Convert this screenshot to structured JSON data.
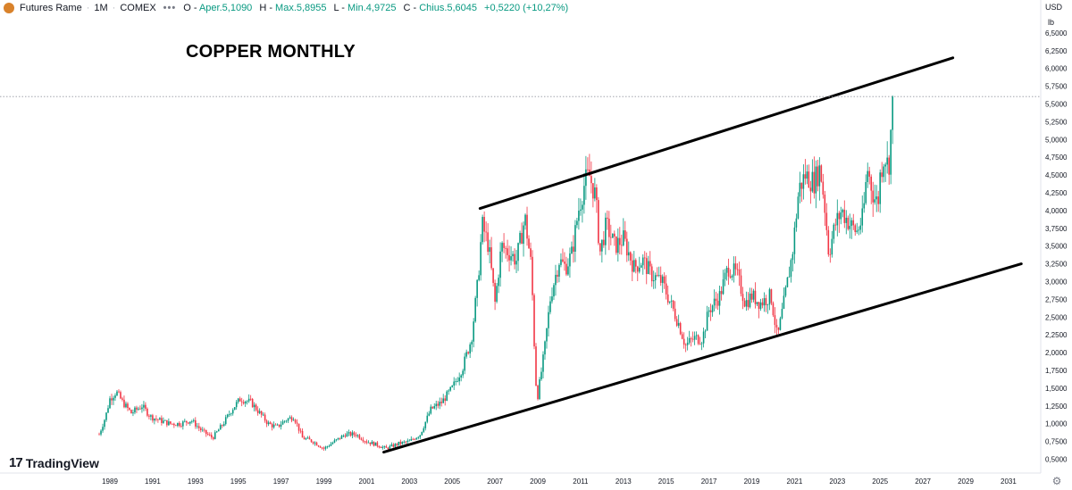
{
  "header": {
    "instrument": "Futures Rame",
    "interval": "1M",
    "exchange": "COMEX",
    "more": "•••",
    "ohlc": [
      {
        "label": "O",
        "value": "Aper.5,1090"
      },
      {
        "label": "H",
        "value": "Max.5,8955"
      },
      {
        "label": "L",
        "value": "Min.4,9725"
      },
      {
        "label": "C",
        "value": "Chius.5,6045"
      },
      {
        "label": "",
        "value": "+0,5220 (+10,27%)"
      }
    ]
  },
  "axis": {
    "currency": "USD",
    "unit": "lb"
  },
  "logo": {
    "mark": "17",
    "text": "TradingView"
  },
  "icons": {
    "settings": "gear-icon",
    "symbol": "copper-icon"
  },
  "colors": {
    "up": "#089981",
    "down": "#f23645",
    "trendline": "#000000",
    "price_label_bg": "#131722"
  },
  "chart_data": {
    "type": "candlestick",
    "title": "COPPER MONTHLY",
    "xlabel": "",
    "ylabel": "",
    "current_price": 5.6045,
    "current_price_label": "5,6045",
    "ylim": [
      0.4,
      6.9
    ],
    "xlim": [
      1988.0,
      2032.0
    ],
    "y_ticks": [
      0.5,
      0.75,
      1.0,
      1.25,
      1.5,
      1.75,
      2.0,
      2.25,
      2.5,
      2.75,
      3.0,
      3.25,
      3.5,
      3.75,
      4.0,
      4.25,
      4.5,
      4.75,
      5.0,
      5.25,
      5.5,
      5.75,
      6.0,
      6.25,
      6.5
    ],
    "y_tick_labels": [
      "0,5000",
      "0,7500",
      "1,0000",
      "1,2500",
      "1,5000",
      "1,7500",
      "2,0000",
      "2,2500",
      "2,5000",
      "2,7500",
      "3,0000",
      "3,2500",
      "3,5000",
      "3,7500",
      "4,0000",
      "4,2500",
      "4,5000",
      "4,7500",
      "5,0000",
      "5,2500",
      "5,5000",
      "5,7500",
      "6,0000",
      "6,2500",
      "6,5000"
    ],
    "x_ticks": [
      1989,
      1991,
      1993,
      1995,
      1997,
      1999,
      2001,
      2003,
      2005,
      2007,
      2009,
      2011,
      2013,
      2015,
      2017,
      2019,
      2021,
      2023,
      2025,
      2027,
      2029,
      2031
    ],
    "x_tick_labels": [
      "1989",
      "1991",
      "1993",
      "1995",
      "1997",
      "1999",
      "2001",
      "2003",
      "2005",
      "2007",
      "2009",
      "2011",
      "2013",
      "2015",
      "2017",
      "2019",
      "2021",
      "2023",
      "2025",
      "2027",
      "2029",
      "2031"
    ],
    "series_points": [
      [
        1988.5,
        0.85
      ],
      [
        1988.8,
        1.1
      ],
      [
        1989.0,
        1.35
      ],
      [
        1989.3,
        1.45
      ],
      [
        1989.6,
        1.3
      ],
      [
        1990.0,
        1.15
      ],
      [
        1990.5,
        1.25
      ],
      [
        1990.9,
        1.1
      ],
      [
        1991.3,
        1.05
      ],
      [
        1991.8,
        1.0
      ],
      [
        1992.3,
        1.0
      ],
      [
        1992.8,
        1.05
      ],
      [
        1993.3,
        0.9
      ],
      [
        1993.8,
        0.8
      ],
      [
        1994.3,
        1.0
      ],
      [
        1994.7,
        1.2
      ],
      [
        1995.1,
        1.35
      ],
      [
        1995.6,
        1.3
      ],
      [
        1996.0,
        1.15
      ],
      [
        1996.4,
        1.0
      ],
      [
        1996.8,
        0.95
      ],
      [
        1997.2,
        1.05
      ],
      [
        1997.6,
        1.1
      ],
      [
        1998.0,
        0.8
      ],
      [
        1998.5,
        0.75
      ],
      [
        1999.0,
        0.65
      ],
      [
        1999.5,
        0.75
      ],
      [
        2000.0,
        0.85
      ],
      [
        2000.5,
        0.85
      ],
      [
        2001.0,
        0.75
      ],
      [
        2001.5,
        0.7
      ],
      [
        2001.9,
        0.65
      ],
      [
        2002.5,
        0.72
      ],
      [
        2003.0,
        0.75
      ],
      [
        2003.5,
        0.85
      ],
      [
        2004.0,
        1.2
      ],
      [
        2004.5,
        1.3
      ],
      [
        2005.0,
        1.5
      ],
      [
        2005.5,
        1.8
      ],
      [
        2005.9,
        2.2
      ],
      [
        2006.2,
        3.0
      ],
      [
        2006.4,
        3.8
      ],
      [
        2006.7,
        3.5
      ],
      [
        2007.0,
        2.7
      ],
      [
        2007.3,
        3.5
      ],
      [
        2007.7,
        3.4
      ],
      [
        2008.0,
        3.3
      ],
      [
        2008.4,
        3.9
      ],
      [
        2008.7,
        3.2
      ],
      [
        2008.9,
        1.6
      ],
      [
        2009.0,
        1.4
      ],
      [
        2009.3,
        2.0
      ],
      [
        2009.6,
        2.8
      ],
      [
        2010.0,
        3.3
      ],
      [
        2010.3,
        3.2
      ],
      [
        2010.6,
        3.4
      ],
      [
        2010.9,
        4.0
      ],
      [
        2011.2,
        4.4
      ],
      [
        2011.4,
        4.5
      ],
      [
        2011.7,
        4.2
      ],
      [
        2011.9,
        3.4
      ],
      [
        2012.2,
        3.8
      ],
      [
        2012.6,
        3.5
      ],
      [
        2013.0,
        3.6
      ],
      [
        2013.5,
        3.2
      ],
      [
        2013.9,
        3.3
      ],
      [
        2014.3,
        3.1
      ],
      [
        2014.8,
        3.0
      ],
      [
        2015.2,
        2.7
      ],
      [
        2015.6,
        2.4
      ],
      [
        2015.9,
        2.1
      ],
      [
        2016.3,
        2.2
      ],
      [
        2016.7,
        2.2
      ],
      [
        2017.0,
        2.6
      ],
      [
        2017.5,
        2.8
      ],
      [
        2017.9,
        3.2
      ],
      [
        2018.3,
        3.1
      ],
      [
        2018.7,
        2.7
      ],
      [
        2019.0,
        2.8
      ],
      [
        2019.4,
        2.7
      ],
      [
        2019.9,
        2.8
      ],
      [
        2020.2,
        2.2
      ],
      [
        2020.5,
        2.7
      ],
      [
        2020.9,
        3.4
      ],
      [
        2021.2,
        4.3
      ],
      [
        2021.5,
        4.5
      ],
      [
        2021.9,
        4.4
      ],
      [
        2022.2,
        4.6
      ],
      [
        2022.4,
        4.1
      ],
      [
        2022.6,
        3.4
      ],
      [
        2022.9,
        3.8
      ],
      [
        2023.2,
        4.0
      ],
      [
        2023.6,
        3.8
      ],
      [
        2023.9,
        3.7
      ],
      [
        2024.2,
        3.9
      ],
      [
        2024.4,
        4.6
      ],
      [
        2024.7,
        4.2
      ],
      [
        2024.9,
        4.1
      ],
      [
        2025.0,
        4.5
      ],
      [
        2025.2,
        4.8
      ],
      [
        2025.4,
        4.6
      ],
      [
        2025.5,
        5.1
      ],
      [
        2025.6,
        5.6045
      ]
    ],
    "trendlines": [
      {
        "name": "",
        "x": [
          2006.3,
          2028.4
        ],
        "y": [
          4.03,
          6.15
        ]
      },
      {
        "name": "",
        "x": [
          2001.8,
          2031.6
        ],
        "y": [
          0.6,
          3.25
        ]
      }
    ]
  }
}
